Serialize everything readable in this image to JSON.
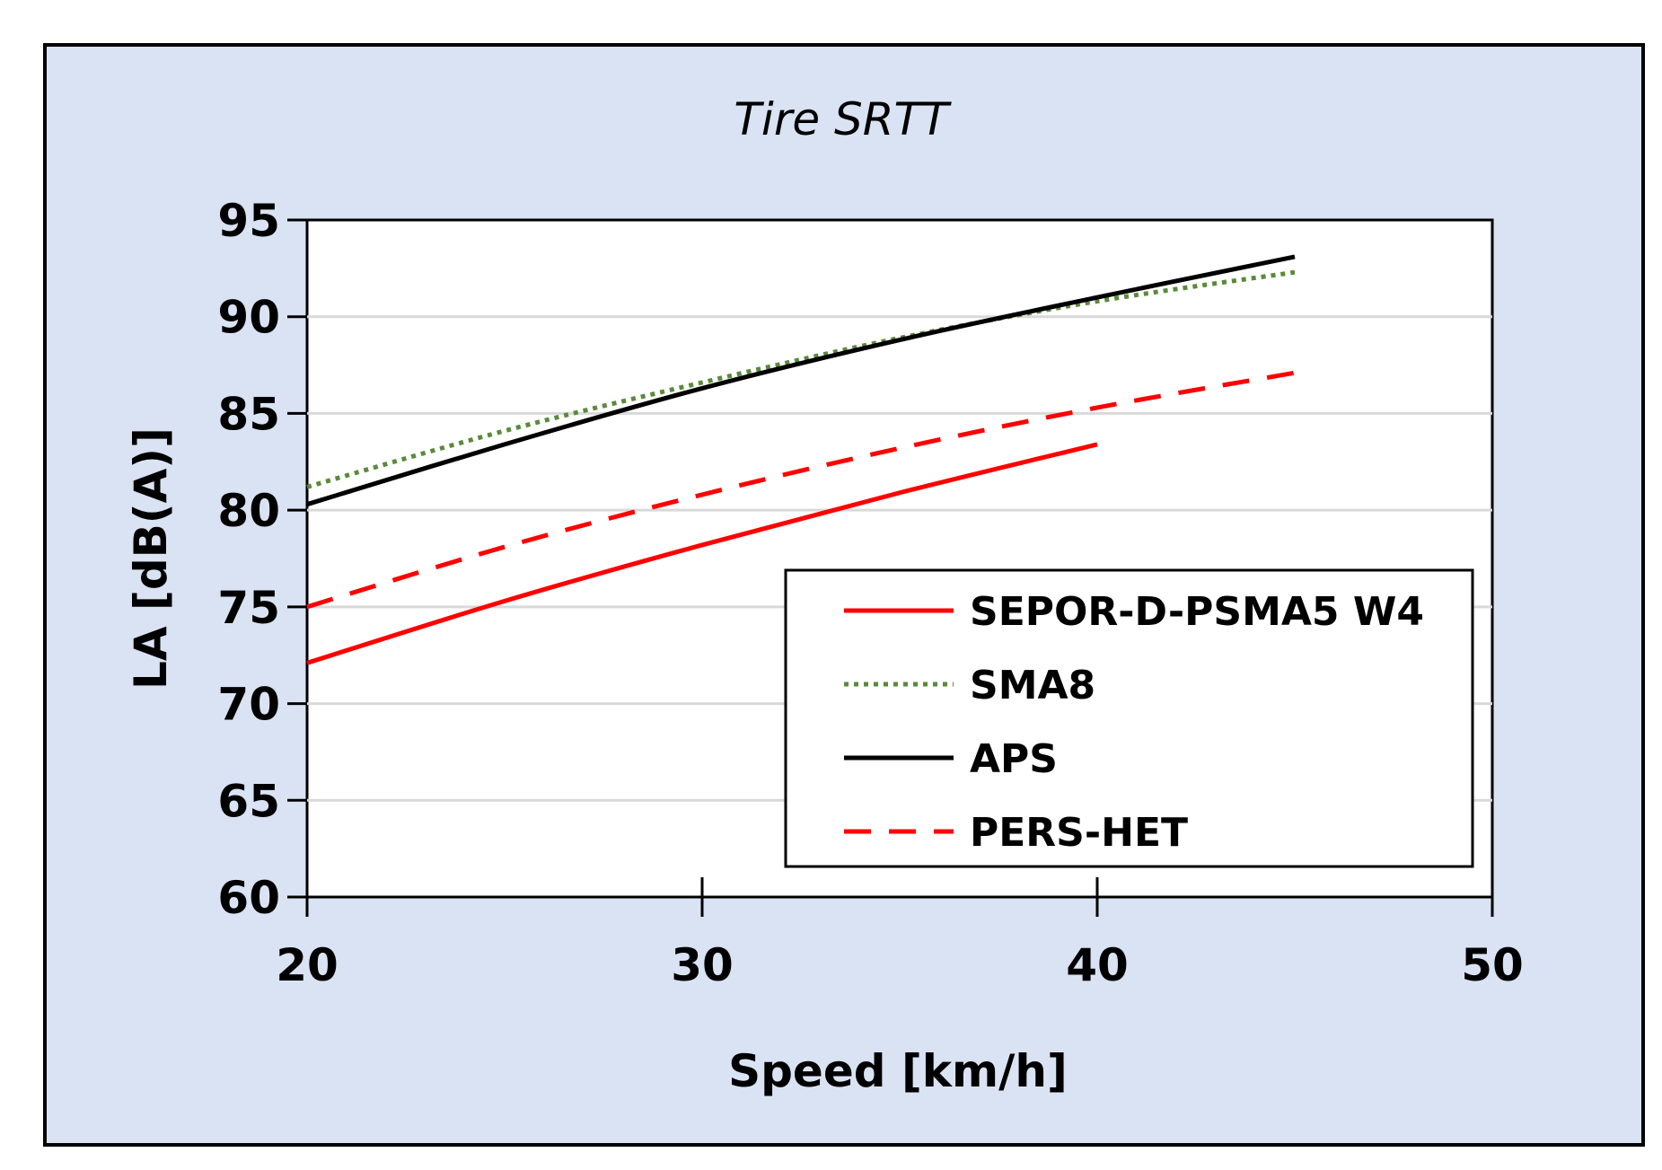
{
  "chart_data": {
    "type": "line",
    "title": "Tire SRTT",
    "xlabel": "Speed [km/h]",
    "ylabel": "LA [dB(A)]",
    "xlim": [
      20,
      50
    ],
    "ylim": [
      60,
      95
    ],
    "xticks": [
      20,
      30,
      40,
      50
    ],
    "yticks": [
      60,
      65,
      70,
      75,
      80,
      85,
      90,
      95
    ],
    "x_tick_labels": [
      "20",
      "30",
      "40",
      "50"
    ],
    "y_tick_labels": [
      "60",
      "65",
      "70",
      "75",
      "80",
      "85",
      "90",
      "95"
    ],
    "grid": "horizontal",
    "legend_position": "bottom-right",
    "series": [
      {
        "name": "SEPOR-D-PSMA5 W4",
        "color": "#ff0000",
        "style": "solid",
        "x": [
          20,
          25,
          30,
          35,
          40
        ],
        "y": [
          72.1,
          75.3,
          78.2,
          80.9,
          83.4
        ]
      },
      {
        "name": "SMA8",
        "color": "#5a8a3a",
        "style": "dotted",
        "x": [
          20,
          25,
          30,
          35,
          40,
          45
        ],
        "y": [
          81.2,
          84.1,
          86.6,
          88.9,
          90.8,
          92.3
        ]
      },
      {
        "name": "APS",
        "color": "#000000",
        "style": "solid",
        "x": [
          20,
          25,
          30,
          35,
          40,
          45
        ],
        "y": [
          80.3,
          83.4,
          86.3,
          88.8,
          91.0,
          93.1
        ]
      },
      {
        "name": "PERS-HET",
        "color": "#ff0000",
        "style": "dashed",
        "x": [
          20,
          25,
          30,
          35,
          40,
          45
        ],
        "y": [
          75.0,
          78.1,
          80.8,
          83.2,
          85.3,
          87.1
        ]
      }
    ],
    "colors": {
      "outer_background": "#dae3f3",
      "plot_background": "#ffffff",
      "gridline": "#d9d9d9",
      "frame": "#000000"
    }
  }
}
